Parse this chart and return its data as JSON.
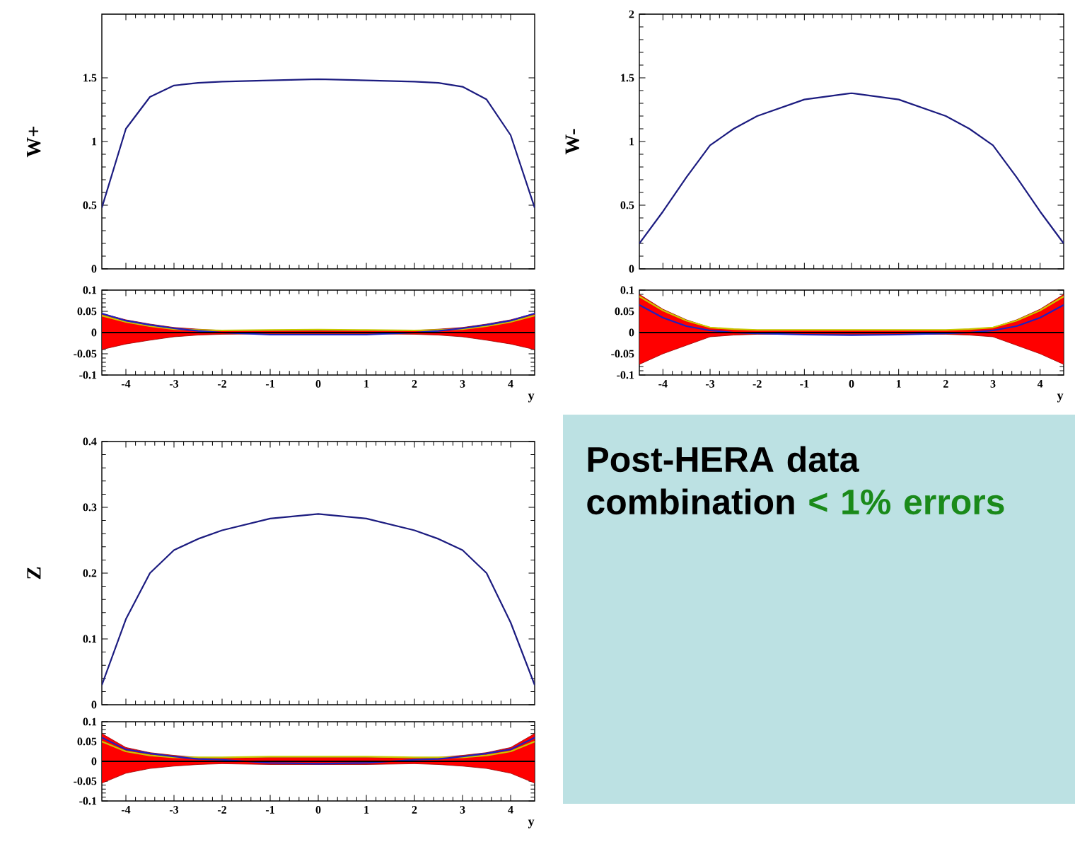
{
  "chart_data": [
    {
      "type": "line",
      "ylabel": "W+",
      "xlim": [
        -4.5,
        4.5
      ],
      "ylim": [
        0,
        2
      ],
      "yticks": [
        0,
        0.5,
        1,
        1.5
      ],
      "xticks": [
        -4,
        -3,
        -2,
        -1,
        0,
        1,
        2,
        3,
        4
      ],
      "tick_labels": "y",
      "x": [
        -4.5,
        -4,
        -3.5,
        -3,
        -2.5,
        -2,
        -1,
        0,
        1,
        2,
        2.5,
        3,
        3.5,
        4,
        4.5
      ],
      "series": [
        {
          "color": "#1c1c80",
          "values": [
            0.48,
            1.1,
            1.35,
            1.44,
            1.46,
            1.47,
            1.48,
            1.49,
            1.48,
            1.47,
            1.46,
            1.43,
            1.33,
            1.05,
            0.48
          ]
        }
      ]
    },
    {
      "type": "line",
      "xlabel": "y",
      "xlim": [
        -4.5,
        4.5
      ],
      "ylim": [
        -0.1,
        0.1
      ],
      "yticks": [
        -0.1,
        -0.05,
        0,
        0.05,
        0.1
      ],
      "xticks": [
        -4,
        -3,
        -2,
        -1,
        0,
        1,
        2,
        3,
        4
      ],
      "x": [
        -4.5,
        -4,
        -3.5,
        -3,
        -2.5,
        -2,
        -1,
        0,
        1,
        2,
        2.5,
        3,
        3.5,
        4,
        4.5
      ],
      "series": [
        {
          "color": "#000000",
          "values": [
            0,
            0,
            0,
            0,
            0,
            0,
            0,
            0,
            0,
            0,
            0,
            0,
            0,
            0,
            0
          ],
          "upper": [
            0.045,
            0.03,
            0.02,
            0.012,
            0.008,
            0.005,
            0.004,
            0.004,
            0.004,
            0.005,
            0.008,
            0.012,
            0.02,
            0.03,
            0.045
          ],
          "lower": [
            -0.04,
            -0.027,
            -0.018,
            -0.01,
            -0.006,
            -0.004,
            -0.003,
            -0.003,
            -0.003,
            -0.004,
            -0.006,
            -0.01,
            -0.018,
            -0.027,
            -0.04
          ]
        },
        {
          "color": "#c8c800",
          "values": [
            0.04,
            0.025,
            0.015,
            0.008,
            0.006,
            0.005,
            0.006,
            0.007,
            0.006,
            0.005,
            0.006,
            0.008,
            0.015,
            0.025,
            0.04
          ]
        },
        {
          "color": "#2020c0",
          "values": [
            0.045,
            0.028,
            0.018,
            0.01,
            0.004,
            0,
            -0.005,
            -0.005,
            -0.005,
            0,
            0.004,
            0.01,
            0.018,
            0.028,
            0.045
          ]
        }
      ]
    },
    {
      "type": "line",
      "ylabel": "W-",
      "xlim": [
        -4.5,
        4.5
      ],
      "ylim": [
        0,
        2
      ],
      "yticks": [
        0,
        0.5,
        1,
        1.5,
        2
      ],
      "xticks": [
        -4,
        -3,
        -2,
        -1,
        0,
        1,
        2,
        3,
        4
      ],
      "tick_labels": "y",
      "x": [
        -4.5,
        -4,
        -3.5,
        -3,
        -2.5,
        -2,
        -1,
        0,
        1,
        2,
        2.5,
        3,
        3.5,
        4,
        4.5
      ],
      "series": [
        {
          "color": "#1c1c80",
          "values": [
            0.2,
            0.45,
            0.72,
            0.97,
            1.1,
            1.2,
            1.33,
            1.38,
            1.33,
            1.2,
            1.1,
            0.97,
            0.72,
            0.45,
            0.2
          ]
        }
      ]
    },
    {
      "type": "line",
      "xlabel": "y",
      "xlim": [
        -4.5,
        4.5
      ],
      "ylim": [
        -0.1,
        0.1
      ],
      "yticks": [
        -0.1,
        -0.05,
        0,
        0.05,
        0.1
      ],
      "xticks": [
        -4,
        -3,
        -2,
        -1,
        0,
        1,
        2,
        3,
        4
      ],
      "x": [
        -4.5,
        -4,
        -3.5,
        -3,
        -2.5,
        -2,
        -1,
        0,
        1,
        2,
        2.5,
        3,
        3.5,
        4,
        4.5
      ],
      "series": [
        {
          "color": "#000000",
          "values": [
            0,
            0,
            0,
            0,
            0,
            0,
            0,
            0,
            0,
            0,
            0,
            0,
            0,
            0,
            0
          ],
          "upper": [
            0.09,
            0.055,
            0.03,
            0.012,
            0.008,
            0.006,
            0.006,
            0.006,
            0.006,
            0.006,
            0.008,
            0.012,
            0.03,
            0.055,
            0.09
          ],
          "lower": [
            -0.075,
            -0.05,
            -0.03,
            -0.01,
            -0.006,
            -0.004,
            -0.004,
            -0.004,
            -0.004,
            -0.004,
            -0.006,
            -0.01,
            -0.03,
            -0.05,
            -0.075
          ]
        },
        {
          "color": "#c8c800",
          "values": [
            0.085,
            0.052,
            0.028,
            0.012,
            0.008,
            0.006,
            0.006,
            0.006,
            0.006,
            0.006,
            0.008,
            0.012,
            0.028,
            0.052,
            0.085
          ]
        },
        {
          "color": "#2020c0",
          "values": [
            0.065,
            0.035,
            0.015,
            0.005,
            0,
            -0.002,
            -0.005,
            -0.006,
            -0.005,
            -0.002,
            0,
            0.005,
            0.015,
            0.035,
            0.065
          ]
        }
      ]
    },
    {
      "type": "line",
      "ylabel": "Z",
      "xlim": [
        -4.5,
        4.5
      ],
      "ylim": [
        0,
        0.4
      ],
      "yticks": [
        0,
        0.1,
        0.2,
        0.3,
        0.4
      ],
      "xticks": [
        -4,
        -3,
        -2,
        -1,
        0,
        1,
        2,
        3,
        4
      ],
      "tick_labels": "y",
      "x": [
        -4.5,
        -4,
        -3.5,
        -3,
        -2.5,
        -2,
        -1,
        0,
        1,
        2,
        2.5,
        3,
        3.5,
        4,
        4.5
      ],
      "series": [
        {
          "color": "#1c1c80",
          "values": [
            0.03,
            0.13,
            0.2,
            0.235,
            0.252,
            0.265,
            0.283,
            0.29,
            0.283,
            0.265,
            0.252,
            0.235,
            0.2,
            0.125,
            0.03
          ]
        }
      ]
    },
    {
      "type": "line",
      "xlabel": "y",
      "xlim": [
        -4.5,
        4.5
      ],
      "ylim": [
        -0.1,
        0.1
      ],
      "yticks": [
        -0.1,
        -0.05,
        0,
        0.05,
        0.1
      ],
      "xticks": [
        -4,
        -3,
        -2,
        -1,
        0,
        1,
        2,
        3,
        4
      ],
      "x": [
        -4.5,
        -4,
        -3.5,
        -3,
        -2.5,
        -2,
        -1,
        0,
        1,
        2,
        2.5,
        3,
        3.5,
        4,
        4.5
      ],
      "series": [
        {
          "color": "#000000",
          "values": [
            0,
            0,
            0,
            0,
            0,
            0,
            0,
            0,
            0,
            0,
            0,
            0,
            0,
            0,
            0
          ],
          "upper": [
            0.07,
            0.035,
            0.022,
            0.015,
            0.01,
            0.008,
            0.01,
            0.01,
            0.01,
            0.008,
            0.01,
            0.015,
            0.022,
            0.035,
            0.07
          ],
          "lower": [
            -0.055,
            -0.03,
            -0.018,
            -0.012,
            -0.008,
            -0.006,
            -0.008,
            -0.008,
            -0.008,
            -0.006,
            -0.008,
            -0.012,
            -0.018,
            -0.03,
            -0.055
          ]
        },
        {
          "color": "#c8c800",
          "values": [
            0.05,
            0.025,
            0.015,
            0.01,
            0.01,
            0.01,
            0.012,
            0.012,
            0.012,
            0.01,
            0.01,
            0.01,
            0.015,
            0.025,
            0.05
          ]
        },
        {
          "color": "#2020c0",
          "values": [
            0.06,
            0.03,
            0.02,
            0.012,
            0.006,
            0.004,
            -0.004,
            -0.006,
            -0.004,
            0.004,
            0.006,
            0.012,
            0.02,
            0.03,
            0.06
          ]
        }
      ]
    },
    {
      "type": "other",
      "annotations": [
        "Post-HERA data combination",
        "< 1% errors"
      ]
    }
  ]
}
